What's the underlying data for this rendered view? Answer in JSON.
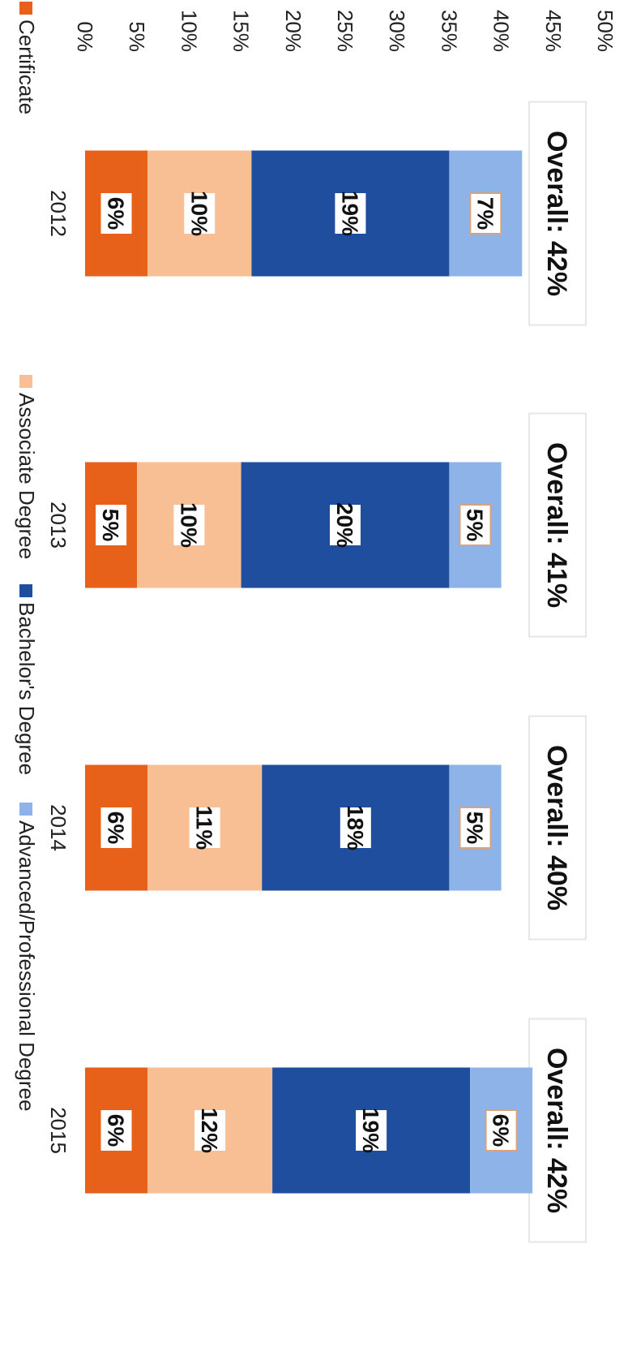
{
  "chart_data": {
    "type": "bar",
    "stacked": true,
    "categories": [
      "2012",
      "2013",
      "2014",
      "2015"
    ],
    "series": [
      {
        "name": "Certificate",
        "values": [
          6,
          5,
          6,
          6
        ],
        "color": "#e8611a"
      },
      {
        "name": "Associate Degree",
        "values": [
          10,
          10,
          11,
          12
        ],
        "color": "#f8bf94"
      },
      {
        "name": "Bachelor's Degree",
        "values": [
          19,
          20,
          18,
          19
        ],
        "color": "#1f4e9e"
      },
      {
        "name": "Advanced/Professional Degree",
        "values": [
          7,
          5,
          5,
          6
        ],
        "color": "#8db3e8"
      }
    ],
    "data_labels": [
      [
        "6%",
        "5%",
        "6%",
        "6%"
      ],
      [
        "10%",
        "10%",
        "11%",
        "12%"
      ],
      [
        "19%",
        "20%",
        "18%",
        "19%"
      ],
      [
        "7%",
        "5%",
        "5%",
        "6%"
      ]
    ],
    "totals": [
      "Overall:  42%",
      "Overall:  41%",
      "Overall:  40%",
      "Overall:  42%"
    ],
    "ylim": [
      0,
      50
    ],
    "yticks": [
      "0%",
      "5%",
      "10%",
      "15%",
      "20%",
      "25%",
      "30%",
      "35%",
      "40%",
      "45%",
      "50%"
    ],
    "grid": false,
    "legend_position": "bottom"
  }
}
